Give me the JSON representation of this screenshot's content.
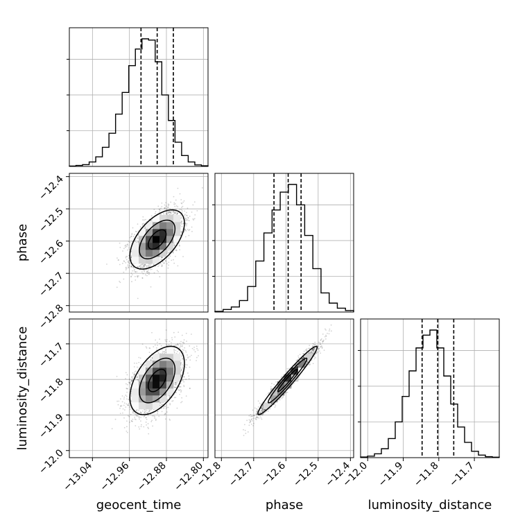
{
  "chart_data": {
    "type": "corner",
    "grid": true,
    "parameters": [
      {
        "name": "geocent_time",
        "xlabel": "geocent_time",
        "ylabel": "",
        "range": [
          -13.09,
          -12.79
        ],
        "ticks": [
          -13.04,
          -12.96,
          -12.88,
          -12.8
        ],
        "tick_labels": [
          "−13.04",
          "−12.96",
          "−12.88",
          "−12.80"
        ],
        "quantiles": [
          -12.935,
          -12.9,
          -12.865
        ],
        "mean": -12.9,
        "sd": 0.027,
        "hist_counts": [
          0.003,
          0.008,
          0.014,
          0.035,
          0.075,
          0.15,
          0.26,
          0.41,
          0.58,
          0.79,
          0.92,
          1.0,
          0.99,
          0.82,
          0.56,
          0.36,
          0.19,
          0.085,
          0.035,
          0.012,
          0.005
        ]
      },
      {
        "name": "phase",
        "xlabel": "phase",
        "ylabel": "phase",
        "range": [
          -12.82,
          -12.39
        ],
        "ticks": [
          -12.8,
          -12.7,
          -12.6,
          -12.5,
          -12.4
        ],
        "tick_labels": [
          "−12.8",
          "−12.7",
          "−12.6",
          "−12.5",
          "−12.4"
        ],
        "quantiles": [
          -12.637,
          -12.593,
          -12.553
        ],
        "mean": -12.595,
        "sd": 0.042,
        "hist_counts": [
          0.005,
          0.02,
          0.04,
          0.09,
          0.2,
          0.4,
          0.62,
          0.8,
          0.94,
          1.0,
          0.84,
          0.6,
          0.34,
          0.15,
          0.07,
          0.03,
          0.012
        ]
      },
      {
        "name": "luminosity_distance",
        "xlabel": "luminosity_distance",
        "ylabel": "luminosity_distance",
        "range": [
          -12.02,
          -11.63
        ],
        "ticks": [
          -12.0,
          -11.9,
          -11.8,
          -11.7
        ],
        "tick_labels": [
          "−12.0",
          "−11.9",
          "−11.8",
          "−11.7"
        ],
        "quantiles": [
          -11.847,
          -11.803,
          -11.758
        ],
        "mean": -11.803,
        "sd": 0.044,
        "hist_counts": [
          0.005,
          0.012,
          0.03,
          0.07,
          0.15,
          0.28,
          0.48,
          0.68,
          0.86,
          0.96,
          1.0,
          0.86,
          0.64,
          0.42,
          0.24,
          0.12,
          0.05,
          0.02,
          0.008,
          0.004
        ]
      }
    ],
    "correlations": {
      "geocent_time|phase": 0.55,
      "geocent_time|luminosity_distance": 0.5,
      "phase|luminosity_distance": 0.97
    },
    "contour_levels": [
      0.39,
      0.86,
      0.99
    ]
  }
}
